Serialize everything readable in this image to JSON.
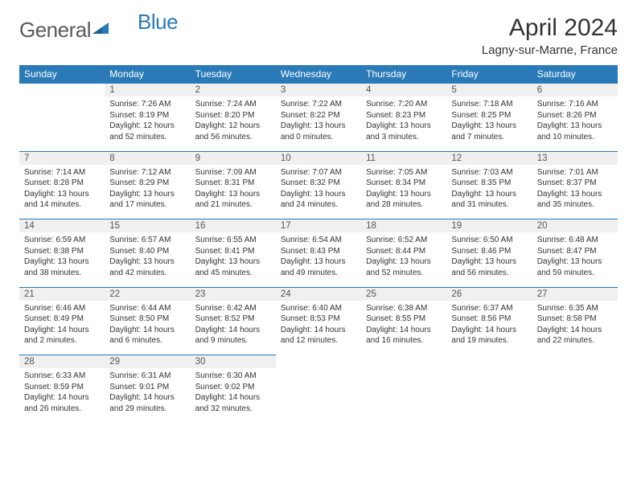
{
  "logo": {
    "text1": "General",
    "text2": "Blue"
  },
  "title": "April 2024",
  "location": "Lagny-sur-Marne, France",
  "weekday_labels": [
    "Sunday",
    "Monday",
    "Tuesday",
    "Wednesday",
    "Thursday",
    "Friday",
    "Saturday"
  ],
  "header_bg": "#2a7ab8",
  "weeks": [
    {
      "nums": [
        "",
        "1",
        "2",
        "3",
        "4",
        "5",
        "6"
      ],
      "cells": [
        null,
        {
          "sr": "7:26 AM",
          "ss": "8:19 PM",
          "dl": "12 hours and 52 minutes."
        },
        {
          "sr": "7:24 AM",
          "ss": "8:20 PM",
          "dl": "12 hours and 56 minutes."
        },
        {
          "sr": "7:22 AM",
          "ss": "8:22 PM",
          "dl": "13 hours and 0 minutes."
        },
        {
          "sr": "7:20 AM",
          "ss": "8:23 PM",
          "dl": "13 hours and 3 minutes."
        },
        {
          "sr": "7:18 AM",
          "ss": "8:25 PM",
          "dl": "13 hours and 7 minutes."
        },
        {
          "sr": "7:16 AM",
          "ss": "8:26 PM",
          "dl": "13 hours and 10 minutes."
        }
      ]
    },
    {
      "nums": [
        "7",
        "8",
        "9",
        "10",
        "11",
        "12",
        "13"
      ],
      "cells": [
        {
          "sr": "7:14 AM",
          "ss": "8:28 PM",
          "dl": "13 hours and 14 minutes."
        },
        {
          "sr": "7:12 AM",
          "ss": "8:29 PM",
          "dl": "13 hours and 17 minutes."
        },
        {
          "sr": "7:09 AM",
          "ss": "8:31 PM",
          "dl": "13 hours and 21 minutes."
        },
        {
          "sr": "7:07 AM",
          "ss": "8:32 PM",
          "dl": "13 hours and 24 minutes."
        },
        {
          "sr": "7:05 AM",
          "ss": "8:34 PM",
          "dl": "13 hours and 28 minutes."
        },
        {
          "sr": "7:03 AM",
          "ss": "8:35 PM",
          "dl": "13 hours and 31 minutes."
        },
        {
          "sr": "7:01 AM",
          "ss": "8:37 PM",
          "dl": "13 hours and 35 minutes."
        }
      ]
    },
    {
      "nums": [
        "14",
        "15",
        "16",
        "17",
        "18",
        "19",
        "20"
      ],
      "cells": [
        {
          "sr": "6:59 AM",
          "ss": "8:38 PM",
          "dl": "13 hours and 38 minutes."
        },
        {
          "sr": "6:57 AM",
          "ss": "8:40 PM",
          "dl": "13 hours and 42 minutes."
        },
        {
          "sr": "6:55 AM",
          "ss": "8:41 PM",
          "dl": "13 hours and 45 minutes."
        },
        {
          "sr": "6:54 AM",
          "ss": "8:43 PM",
          "dl": "13 hours and 49 minutes."
        },
        {
          "sr": "6:52 AM",
          "ss": "8:44 PM",
          "dl": "13 hours and 52 minutes."
        },
        {
          "sr": "6:50 AM",
          "ss": "8:46 PM",
          "dl": "13 hours and 56 minutes."
        },
        {
          "sr": "6:48 AM",
          "ss": "8:47 PM",
          "dl": "13 hours and 59 minutes."
        }
      ]
    },
    {
      "nums": [
        "21",
        "22",
        "23",
        "24",
        "25",
        "26",
        "27"
      ],
      "cells": [
        {
          "sr": "6:46 AM",
          "ss": "8:49 PM",
          "dl": "14 hours and 2 minutes."
        },
        {
          "sr": "6:44 AM",
          "ss": "8:50 PM",
          "dl": "14 hours and 6 minutes."
        },
        {
          "sr": "6:42 AM",
          "ss": "8:52 PM",
          "dl": "14 hours and 9 minutes."
        },
        {
          "sr": "6:40 AM",
          "ss": "8:53 PM",
          "dl": "14 hours and 12 minutes."
        },
        {
          "sr": "6:38 AM",
          "ss": "8:55 PM",
          "dl": "14 hours and 16 minutes."
        },
        {
          "sr": "6:37 AM",
          "ss": "8:56 PM",
          "dl": "14 hours and 19 minutes."
        },
        {
          "sr": "6:35 AM",
          "ss": "8:58 PM",
          "dl": "14 hours and 22 minutes."
        }
      ]
    },
    {
      "nums": [
        "28",
        "29",
        "30",
        "",
        "",
        "",
        ""
      ],
      "cells": [
        {
          "sr": "6:33 AM",
          "ss": "8:59 PM",
          "dl": "14 hours and 26 minutes."
        },
        {
          "sr": "6:31 AM",
          "ss": "9:01 PM",
          "dl": "14 hours and 29 minutes."
        },
        {
          "sr": "6:30 AM",
          "ss": "9:02 PM",
          "dl": "14 hours and 32 minutes."
        },
        null,
        null,
        null,
        null
      ]
    }
  ],
  "labels": {
    "sunrise": "Sunrise:",
    "sunset": "Sunset:",
    "daylight": "Daylight:"
  }
}
